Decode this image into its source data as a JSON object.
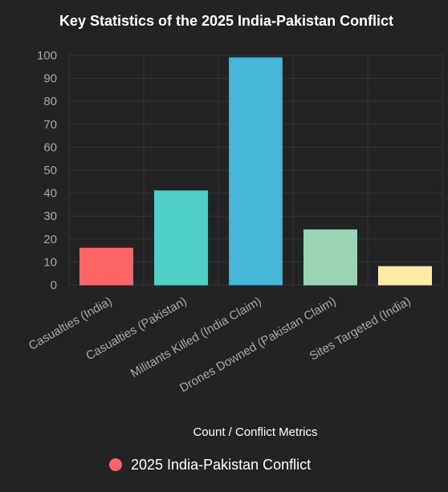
{
  "chart_data": {
    "type": "bar",
    "title": "Key Statistics of the 2025 India-Pakistan Conflict",
    "xlabel": "Count / Conflict Metrics",
    "ylabel": "",
    "categories": [
      "Casualties (India)",
      "Casualties (Pakistan)",
      "Militants Killed (India Claim)",
      "Drones Downed (Pakistan Claim)",
      "Sites Targeted (India)"
    ],
    "series": [
      {
        "name": "2025 India-Pakistan Conflict",
        "values": [
          16,
          41,
          99,
          24,
          8
        ],
        "colors": [
          "#ff6467",
          "#4ed0c4",
          "#45b7d9",
          "#9bd4b4",
          "#ffeaa6"
        ],
        "border_colors": [
          "#ff6467",
          "#4ed0c4",
          "#3f9fd6",
          "#9bd4b4",
          "#ffeaa6"
        ]
      }
    ],
    "ylim": [
      0,
      100
    ],
    "yticks": [
      0,
      10,
      20,
      30,
      40,
      50,
      60,
      70,
      80,
      90,
      100
    ],
    "grid": true,
    "legend_position": "bottom",
    "background": "#232325",
    "grid_color": "#353538",
    "text_color": "#a9a9ad"
  }
}
